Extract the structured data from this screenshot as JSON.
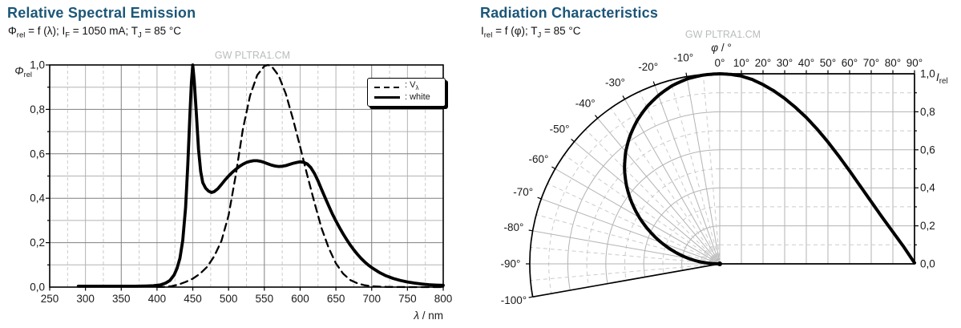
{
  "colors": {
    "title": "#1B5678",
    "text": "#1a1a1a",
    "watermark": "#b9bcbe",
    "curve": "#000000",
    "grid_dark": "#7f7f7f",
    "grid_light": "#b3b3b3",
    "grid_dashed": "#cbcbcb",
    "frame": "#000000"
  },
  "left_chart": {
    "title": "Relative Spectral Emission",
    "subtitle_segments": [
      {
        "t": "Φ"
      },
      {
        "t": "rel",
        "sub": true
      },
      {
        "t": " = f (λ); I"
      },
      {
        "t": "F",
        "sub": true
      },
      {
        "t": " = 1050 mA; T"
      },
      {
        "t": "J",
        "sub": true
      },
      {
        "t": " = 85 °C"
      }
    ],
    "watermark": "GW PLTRA1.CM",
    "x_axis": {
      "min": 250,
      "max": 800,
      "major_step": 50,
      "minor_step": 25,
      "dark_lines": [
        350,
        550,
        700
      ],
      "tick_labels": [
        "250",
        "300",
        "350",
        "400",
        "450",
        "500",
        "550",
        "600",
        "650",
        "700",
        "750",
        "800"
      ]
    },
    "y_axis": {
      "min": 0,
      "max": 1,
      "major_step": 0.2,
      "minor_step": 0.1,
      "tick_labels": [
        "0,0",
        "0,2",
        "0,4",
        "0,6",
        "0,8",
        "1,0"
      ]
    },
    "y_axis_label_segments": [
      {
        "t": "Φ",
        "italic": true
      },
      {
        "t": "rel",
        "sub": true
      }
    ],
    "x_axis_label_segments": [
      {
        "t": "λ",
        "italic": true
      },
      {
        "t": " / nm"
      }
    ],
    "legend": {
      "items": [
        {
          "style": "dashed",
          "text": ": V",
          "sub": "λ"
        },
        {
          "style": "solid",
          "text": ": white",
          "sub": ""
        }
      ]
    }
  },
  "right_chart": {
    "title": "Radiation Characteristics",
    "subtitle_segments": [
      {
        "t": "I"
      },
      {
        "t": "rel",
        "sub": true
      },
      {
        "t": " = f (φ); T"
      },
      {
        "t": "J",
        "sub": true
      },
      {
        "t": " = 85 °C"
      }
    ],
    "watermark": "GW PLTRA1.CM",
    "phi_axis_label_segments": [
      {
        "t": "φ",
        "italic": true
      },
      {
        "t": " / °"
      }
    ],
    "i_axis_label_segments": [
      {
        "t": "I",
        "italic": true
      },
      {
        "t": "rel",
        "sub": true
      }
    ],
    "angle_labels_left": [
      {
        "deg": -10,
        "label": "-10°"
      },
      {
        "deg": -20,
        "label": "-20°"
      },
      {
        "deg": -30,
        "label": "-30°"
      },
      {
        "deg": -40,
        "label": "-40°"
      },
      {
        "deg": -50,
        "label": "-50°"
      },
      {
        "deg": -60,
        "label": "-60°"
      },
      {
        "deg": -70,
        "label": "-70°"
      },
      {
        "deg": -80,
        "label": "-80°"
      },
      {
        "deg": -90,
        "label": "-90°"
      },
      {
        "deg": -100,
        "label": "-100°"
      }
    ],
    "angle_labels_top": [
      {
        "deg": 0,
        "label": "0°"
      },
      {
        "deg": 10,
        "label": "10°"
      },
      {
        "deg": 20,
        "label": "20°"
      },
      {
        "deg": 30,
        "label": "30°"
      },
      {
        "deg": 40,
        "label": "40°"
      },
      {
        "deg": 50,
        "label": "50°"
      },
      {
        "deg": 60,
        "label": "60°"
      },
      {
        "deg": 70,
        "label": "70°"
      },
      {
        "deg": 80,
        "label": "80°"
      },
      {
        "deg": 90,
        "label": "90°"
      }
    ],
    "r_labels": [
      {
        "v": 0.0,
        "label": "0,0"
      },
      {
        "v": 0.2,
        "label": "0,2"
      },
      {
        "v": 0.4,
        "label": "0,4"
      },
      {
        "v": 0.6,
        "label": "0,6"
      },
      {
        "v": 0.8,
        "label": "0,8"
      },
      {
        "v": 1.0,
        "label": "1,0"
      }
    ]
  },
  "chart_data": [
    {
      "type": "line",
      "title": "Relative Spectral Emission",
      "xlabel": "λ / nm",
      "ylabel": "Φ_rel",
      "xlim": [
        250,
        800
      ],
      "ylim": [
        0,
        1
      ],
      "grid": "on",
      "legend_position": "top-right",
      "series": [
        {
          "name": "V_λ",
          "style": "dashed",
          "points": [
            [
              400,
              0.0004
            ],
            [
              410,
              0.0012
            ],
            [
              420,
              0.004
            ],
            [
              430,
              0.0116
            ],
            [
              440,
              0.023
            ],
            [
              450,
              0.038
            ],
            [
              460,
              0.06
            ],
            [
              470,
              0.091
            ],
            [
              480,
              0.139
            ],
            [
              490,
              0.208
            ],
            [
              500,
              0.323
            ],
            [
              510,
              0.503
            ],
            [
              520,
              0.71
            ],
            [
              530,
              0.862
            ],
            [
              540,
              0.954
            ],
            [
              550,
              0.995
            ],
            [
              555,
              1.0
            ],
            [
              560,
              0.995
            ],
            [
              570,
              0.952
            ],
            [
              580,
              0.87
            ],
            [
              590,
              0.757
            ],
            [
              600,
              0.631
            ],
            [
              610,
              0.503
            ],
            [
              620,
              0.381
            ],
            [
              630,
              0.265
            ],
            [
              640,
              0.175
            ],
            [
              650,
              0.107
            ],
            [
              660,
              0.061
            ],
            [
              670,
              0.032
            ],
            [
              680,
              0.017
            ],
            [
              690,
              0.0082
            ],
            [
              700,
              0.0041
            ],
            [
              710,
              0.0021
            ],
            [
              720,
              0.001
            ],
            [
              740,
              0.0003
            ],
            [
              760,
              0.0001
            ],
            [
              800,
              3e-05
            ]
          ]
        },
        {
          "name": "white",
          "style": "solid",
          "points": [
            [
              290,
              0.004
            ],
            [
              310,
              0.004
            ],
            [
              330,
              0.004
            ],
            [
              350,
              0.004
            ],
            [
              370,
              0.004
            ],
            [
              385,
              0.005
            ],
            [
              395,
              0.006
            ],
            [
              405,
              0.01
            ],
            [
              412,
              0.018
            ],
            [
              418,
              0.03
            ],
            [
              424,
              0.055
            ],
            [
              428,
              0.085
            ],
            [
              432,
              0.13
            ],
            [
              436,
              0.21
            ],
            [
              440,
              0.36
            ],
            [
              443,
              0.55
            ],
            [
              446,
              0.78
            ],
            [
              448,
              0.92
            ],
            [
              450,
              1.0
            ],
            [
              452,
              0.93
            ],
            [
              455,
              0.78
            ],
            [
              458,
              0.62
            ],
            [
              461,
              0.52
            ],
            [
              464,
              0.47
            ],
            [
              468,
              0.445
            ],
            [
              472,
              0.432
            ],
            [
              476,
              0.426
            ],
            [
              480,
              0.43
            ],
            [
              485,
              0.443
            ],
            [
              490,
              0.462
            ],
            [
              495,
              0.482
            ],
            [
              500,
              0.5
            ],
            [
              505,
              0.516
            ],
            [
              510,
              0.53
            ],
            [
              515,
              0.543
            ],
            [
              520,
              0.553
            ],
            [
              525,
              0.561
            ],
            [
              530,
              0.566
            ],
            [
              535,
              0.569
            ],
            [
              540,
              0.569
            ],
            [
              545,
              0.566
            ],
            [
              550,
              0.561
            ],
            [
              555,
              0.555
            ],
            [
              560,
              0.549
            ],
            [
              565,
              0.545
            ],
            [
              570,
              0.543
            ],
            [
              575,
              0.544
            ],
            [
              580,
              0.547
            ],
            [
              585,
              0.552
            ],
            [
              590,
              0.557
            ],
            [
              595,
              0.561
            ],
            [
              600,
              0.564
            ],
            [
              605,
              0.562
            ],
            [
              610,
              0.554
            ],
            [
              615,
              0.538
            ],
            [
              620,
              0.512
            ],
            [
              625,
              0.478
            ],
            [
              630,
              0.44
            ],
            [
              635,
              0.402
            ],
            [
              640,
              0.365
            ],
            [
              645,
              0.33
            ],
            [
              650,
              0.298
            ],
            [
              655,
              0.268
            ],
            [
              660,
              0.24
            ],
            [
              665,
              0.214
            ],
            [
              670,
              0.19
            ],
            [
              675,
              0.168
            ],
            [
              680,
              0.148
            ],
            [
              685,
              0.13
            ],
            [
              690,
              0.114
            ],
            [
              695,
              0.1
            ],
            [
              700,
              0.088
            ],
            [
              710,
              0.067
            ],
            [
              720,
              0.051
            ],
            [
              730,
              0.039
            ],
            [
              740,
              0.03
            ],
            [
              750,
              0.023
            ],
            [
              760,
              0.018
            ],
            [
              770,
              0.014
            ],
            [
              780,
              0.011
            ],
            [
              790,
              0.009
            ],
            [
              800,
              0.008
            ]
          ]
        }
      ]
    },
    {
      "type": "radiation-polar",
      "title": "Radiation Characteristics",
      "angle_label": "φ / °",
      "radial_label": "I_rel",
      "angle_range_deg": [
        -100,
        90
      ],
      "r_range": [
        0,
        1
      ],
      "r_tick_step": 0.1,
      "series": [
        {
          "name": "I_rel",
          "angles_deg": [
            0,
            5,
            10,
            15,
            20,
            25,
            30,
            35,
            40,
            45,
            50,
            55,
            60,
            65,
            70,
            75,
            80,
            85,
            90
          ],
          "values": [
            1.0,
            0.997,
            0.988,
            0.97,
            0.943,
            0.91,
            0.87,
            0.823,
            0.77,
            0.709,
            0.641,
            0.567,
            0.489,
            0.408,
            0.327,
            0.246,
            0.168,
            0.09,
            0.005
          ]
        }
      ]
    }
  ]
}
